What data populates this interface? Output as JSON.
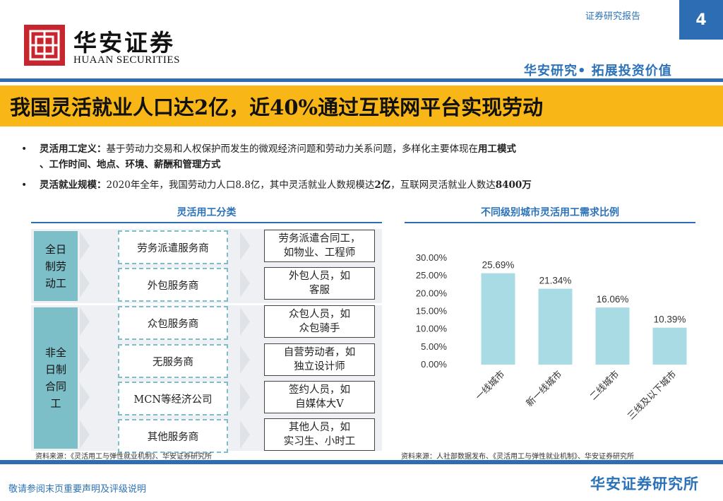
{
  "header": {
    "report_type": "证券研究报告",
    "page_number": "4",
    "logo_cn": "华安证券",
    "logo_en": "HUAAN SECURITIES",
    "slogan": "华安研究• 拓展投资价值",
    "brand_color": "#c8262e",
    "accent_color": "#2c6db3"
  },
  "title": "我国灵活就业人口达2亿，近40%通过互联网平台实现劳动",
  "bullets": [
    {
      "label": "灵活用工定义：",
      "text_a": "基于劳动力交易和人权保护而发生的微观经济问题和劳动力关系问题，多样化主要体现在",
      "bold_a": "用工模式",
      "line2": "、工作时间、地点、环境、薪酬和管理方式"
    },
    {
      "label": "灵活就业规模：",
      "text_a": "2020年全年，我国劳动力人口8.8亿，其中灵活就业人数规模达",
      "bold_a": "2亿",
      "text_b": "，互联网灵活就业人数达",
      "bold_b": "8400万"
    }
  ],
  "left_panel": {
    "title": "灵活用工分类",
    "full_time": "全日制劳动工",
    "part_time": "非全日制合同工",
    "providers": [
      "劳务派遣服务商",
      "外包服务商",
      "众包服务商",
      "无服务商",
      "MCN等经济公司",
      "其他服务商"
    ],
    "workers": [
      [
        "劳务派遣合同工，",
        "如物业、工程师"
      ],
      [
        "外包人员，如",
        "客服"
      ],
      [
        "众包人员，如",
        "众包骑手"
      ],
      [
        "自营劳动者，如",
        "独立设计师"
      ],
      [
        "签约人员，如",
        "自媒体大V"
      ],
      [
        "其他人员，如",
        "实习生、小时工"
      ]
    ],
    "source": "资料来源：《灵活用工与弹性就业机制》、华安证券研究所"
  },
  "right_panel": {
    "title": "不同级别城市灵活用工需求比例",
    "source": "资料来源：人社部数据发布、《灵活用工与弹性就业机制》、华安证券研究所"
  },
  "chart_data": {
    "type": "bar",
    "title": "不同级别城市灵活用工需求比例",
    "categories": [
      "一线城市",
      "新一线城市",
      "二线城市",
      "三线及以下城市"
    ],
    "values": [
      25.69,
      21.34,
      16.06,
      10.39
    ],
    "value_labels": [
      "25.69%",
      "21.34%",
      "16.06%",
      "10.39%"
    ],
    "y_ticks": [
      "30.00%",
      "25.00%",
      "20.00%",
      "15.00%",
      "10.00%",
      "5.00%",
      "0.00%"
    ],
    "ylim": [
      0,
      30
    ],
    "bar_color": "#a8dbe3",
    "grid": false
  },
  "footer": {
    "disclaimer": "敬请参阅末页重要声明及评级说明",
    "brand": "华安证券研究所"
  }
}
